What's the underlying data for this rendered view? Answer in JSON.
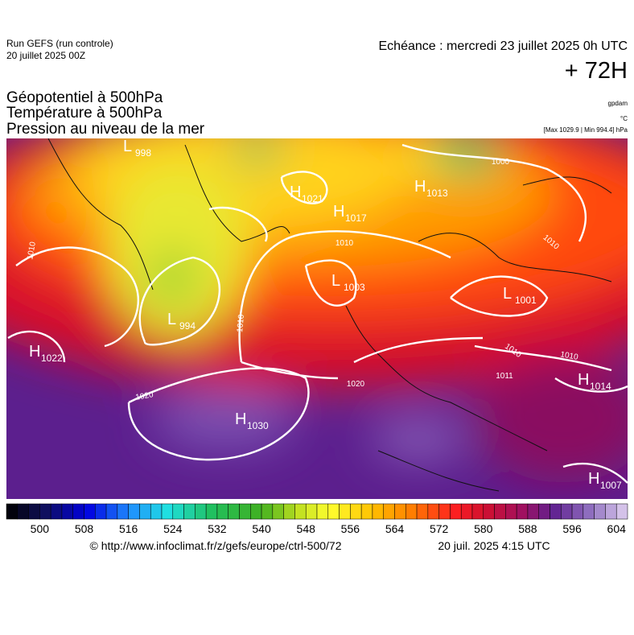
{
  "header": {
    "run": "Run GEFS (run controle)",
    "run_date": "20 juillet 2025 00Z",
    "valid": "Echéance : mercredi 23 juillet 2025 0h UTC",
    "lead": "+ 72H",
    "fields": [
      "Géopotentiel à 500hPa",
      "Température à 500hPa",
      "Pression au niveau de la mer"
    ],
    "units": [
      "gpdam",
      "°C",
      "[Max 1029.9 | Min 994.4] hPa"
    ]
  },
  "centers": [
    {
      "kind": "L",
      "value": 998
    },
    {
      "kind": "H",
      "value": 1021
    },
    {
      "kind": "H",
      "value": 1017
    },
    {
      "kind": "H",
      "value": 1013
    },
    {
      "kind": "L",
      "value": 1003
    },
    {
      "kind": "L",
      "value": 1001
    },
    {
      "kind": "L",
      "value": 994
    },
    {
      "kind": "H",
      "value": 1022
    },
    {
      "kind": "H",
      "value": 1014
    },
    {
      "kind": "H",
      "value": 1030
    },
    {
      "kind": "H",
      "value": 1007
    }
  ],
  "isobar_labels": [
    1010,
    1010,
    1010,
    1000,
    1010,
    1020,
    1020,
    1010,
    1010,
    1011
  ],
  "colorbar": {
    "range": [
      494,
      606
    ],
    "ticks": [
      500,
      508,
      516,
      524,
      532,
      540,
      548,
      556,
      564,
      572,
      580,
      588,
      596,
      604
    ]
  },
  "footer": {
    "source": "© http://www.infoclimat.fr/z/gefs/europe/ctrl-500/72",
    "made": "20 juil. 2025  4:15 UTC"
  }
}
